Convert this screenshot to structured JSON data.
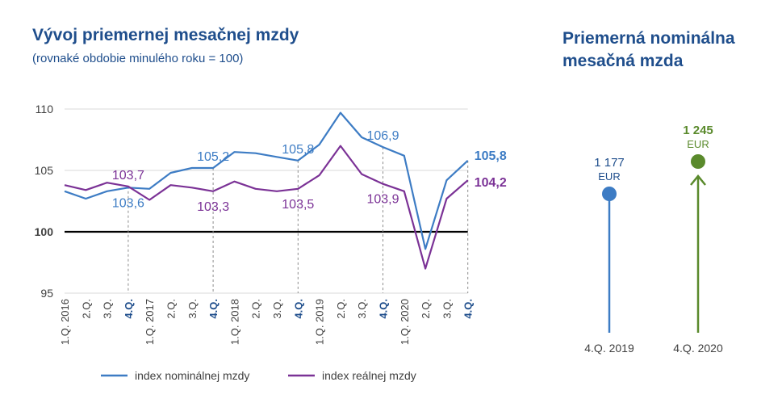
{
  "left_panel": {
    "title": "Vývoj priemernej mesačnej mzdy",
    "subtitle": "(rovnaké obdobie minulého roku = 100)"
  },
  "right_panel": {
    "title_line1": "Priemerná nominálna",
    "title_line2": "mesačná mzda"
  },
  "colors": {
    "nominal": "#3d7cc4",
    "real": "#7b3296",
    "green": "#5a8a2c",
    "title": "#1f4e8c",
    "axis_text": "#404040"
  },
  "chart_data": [
    {
      "type": "line",
      "title": "Vývoj priemernej mesačnej mzdy",
      "subtitle": "(rovnaké obdobie minulého roku = 100)",
      "categories": [
        "1.Q. 2016",
        "2.Q.",
        "3.Q.",
        "4.Q.",
        "1.Q. 2017",
        "2.Q.",
        "3.Q.",
        "4.Q.",
        "1.Q. 2018",
        "2.Q.",
        "3.Q.",
        "4.Q.",
        "1.Q. 2019",
        "2.Q.",
        "3.Q.",
        "4.Q.",
        "1.Q. 2020",
        "2.Q.",
        "3.Q.",
        "4.Q."
      ],
      "highlight_categories": [
        3,
        7,
        11,
        15,
        19
      ],
      "ylim": [
        95,
        110
      ],
      "yticks": [
        95,
        100,
        105,
        110
      ],
      "baseline": 100,
      "grid": true,
      "legend_position": "bottom",
      "series": [
        {
          "name": "index nominálnej mzdy",
          "values": [
            103.3,
            102.7,
            103.3,
            103.6,
            103.5,
            104.8,
            105.2,
            105.2,
            106.5,
            106.4,
            106.1,
            105.8,
            107.1,
            109.7,
            107.7,
            106.9,
            106.2,
            98.6,
            104.2,
            105.8
          ]
        },
        {
          "name": "index reálnej mzdy",
          "values": [
            103.8,
            103.4,
            104.0,
            103.7,
            102.6,
            103.8,
            103.6,
            103.3,
            104.1,
            103.5,
            103.3,
            103.5,
            104.6,
            107.0,
            104.7,
            103.9,
            103.3,
            97.0,
            102.7,
            104.2
          ]
        }
      ],
      "annotations": [
        {
          "series": 1,
          "index": 3,
          "text": "103,7",
          "pos": "above"
        },
        {
          "series": 0,
          "index": 3,
          "text": "103,6",
          "pos": "below"
        },
        {
          "series": 0,
          "index": 7,
          "text": "105,2",
          "pos": "above"
        },
        {
          "series": 1,
          "index": 7,
          "text": "103,3",
          "pos": "below"
        },
        {
          "series": 0,
          "index": 11,
          "text": "105,8",
          "pos": "above"
        },
        {
          "series": 1,
          "index": 11,
          "text": "103,5",
          "pos": "below"
        },
        {
          "series": 0,
          "index": 15,
          "text": "106,9",
          "pos": "above"
        },
        {
          "series": 1,
          "index": 15,
          "text": "103,9",
          "pos": "below"
        },
        {
          "series": 0,
          "index": 19,
          "text": "105,8",
          "pos": "end",
          "bold": true
        },
        {
          "series": 1,
          "index": 19,
          "text": "104,2",
          "pos": "end",
          "bold": true
        }
      ]
    },
    {
      "type": "dot",
      "title": "Priemerná nominálna mesačná mzda",
      "categories": [
        "4.Q. 2019",
        "4.Q. 2020"
      ],
      "values": [
        1177,
        1245
      ],
      "value_labels": [
        "1 177",
        "1 245"
      ],
      "unit": "EUR"
    }
  ]
}
